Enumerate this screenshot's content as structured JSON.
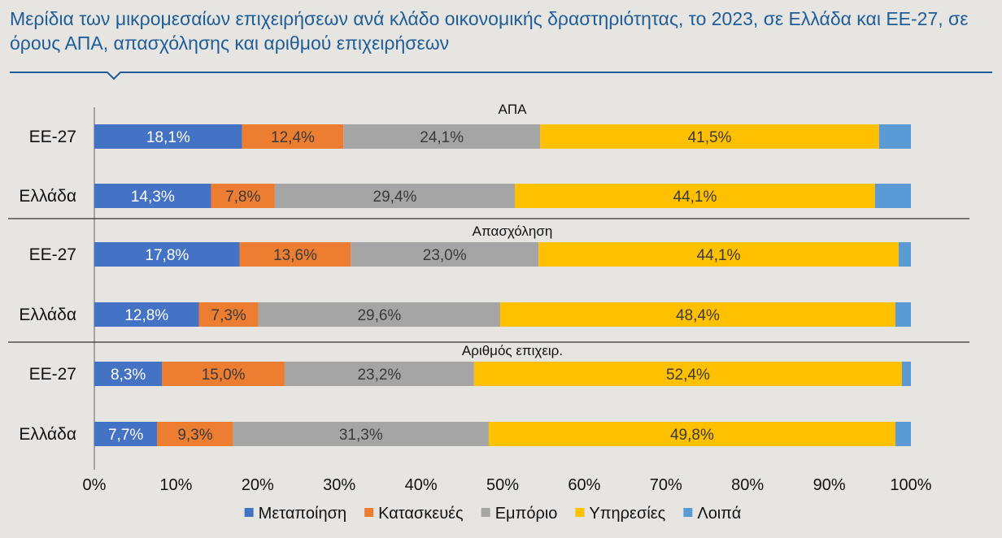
{
  "title": "Μερίδια των μικρομεσαίων επιχειρήσεων ανά κλάδο οικονομικής δραστηριότητας, το 2023, σε Ελλάδα και ΕΕ-27, σε όρους ΑΠΑ, απασχόλησης και αριθμού επιχειρήσεων",
  "chart_data": {
    "type": "bar",
    "orientation": "horizontal",
    "stacked": true,
    "xlim": [
      0,
      100
    ],
    "x_ticks": [
      "0%",
      "10%",
      "20%",
      "30%",
      "40%",
      "50%",
      "60%",
      "70%",
      "80%",
      "90%",
      "100%"
    ],
    "legend_position": "bottom",
    "series_names": [
      "Μεταποίηση",
      "Κατασκευές",
      "Εμπόριο",
      "Υπηρεσίες",
      "Λοιπά"
    ],
    "colors": [
      "#4472c4",
      "#ed7d31",
      "#a5a5a5",
      "#ffc000",
      "#5b9bd5"
    ],
    "label_colors": [
      "#ffffff",
      "#3a3a3a",
      "#3a3a3a",
      "#3a3a3a",
      "#3a3a3a"
    ],
    "groups": [
      {
        "name": "ΑΠΑ",
        "rows": [
          {
            "category": "ΕΕ-27",
            "values": [
              18.1,
              12.4,
              24.1,
              41.5,
              3.9
            ],
            "labels": [
              "18,1%",
              "12,4%",
              "24,1%",
              "41,5%",
              ""
            ]
          },
          {
            "category": "Ελλάδα",
            "values": [
              14.3,
              7.8,
              29.4,
              44.1,
              4.4
            ],
            "labels": [
              "14,3%",
              "7,8%",
              "29,4%",
              "44,1%",
              ""
            ]
          }
        ]
      },
      {
        "name": "Απασχόληση",
        "rows": [
          {
            "category": "ΕΕ-27",
            "values": [
              17.8,
              13.6,
              23.0,
              44.1,
              1.5
            ],
            "labels": [
              "17,8%",
              "13,6%",
              "23,0%",
              "44,1%",
              ""
            ]
          },
          {
            "category": "Ελλάδα",
            "values": [
              12.8,
              7.3,
              29.6,
              48.4,
              1.9
            ],
            "labels": [
              "12,8%",
              "7,3%",
              "29,6%",
              "48,4%",
              ""
            ]
          }
        ]
      },
      {
        "name": "Αριθμός επιχειρ.",
        "rows": [
          {
            "category": "ΕΕ-27",
            "values": [
              8.3,
              15.0,
              23.2,
              52.4,
              1.1
            ],
            "labels": [
              "8,3%",
              "15,0%",
              "23,2%",
              "52,4%",
              ""
            ]
          },
          {
            "category": "Ελλάδα",
            "values": [
              7.7,
              9.3,
              31.3,
              49.8,
              1.9
            ],
            "labels": [
              "7,7%",
              "9,3%",
              "31,3%",
              "49,8%",
              ""
            ]
          }
        ]
      }
    ]
  }
}
